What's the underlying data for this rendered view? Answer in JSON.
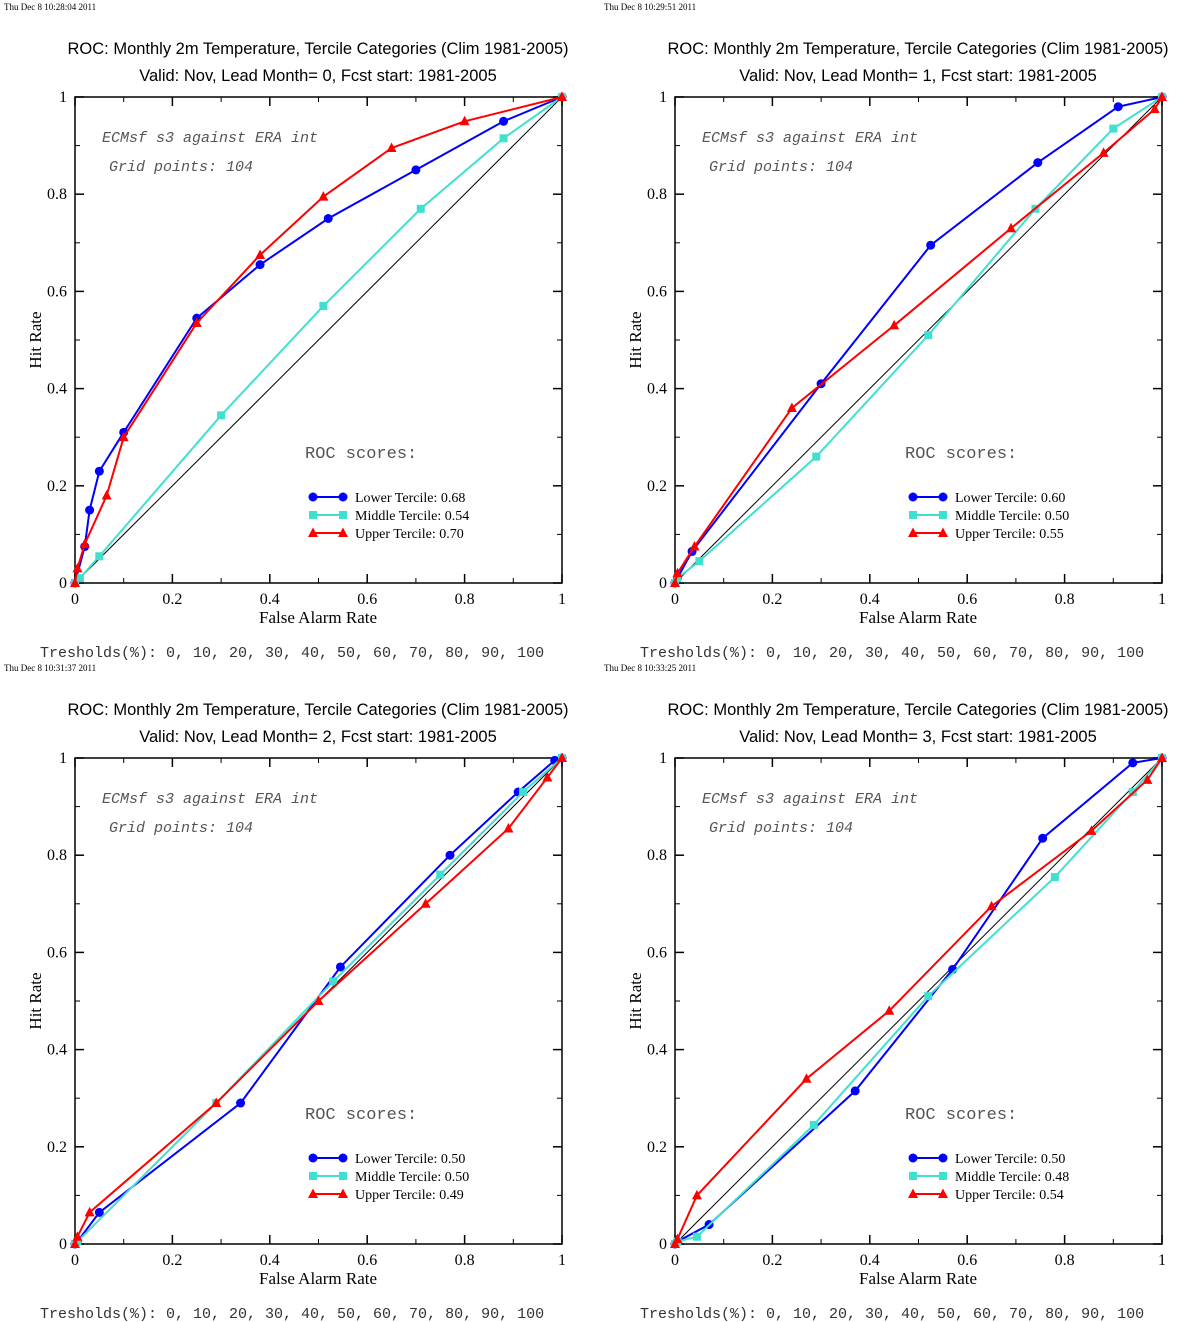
{
  "chart_data": [
    {
      "type": "line",
      "timestamp": "Thu Dec  8 10:28:04 2011",
      "title": "ROC: Monthly 2m Temperature, Tercile Categories (Clim 1981-2005)",
      "subtitle": "Valid: Nov, Lead Month= 0, Fcst start: 1981-2005",
      "xlabel": "False Alarm Rate",
      "ylabel": "Hit Rate",
      "xlim": [
        0,
        1
      ],
      "ylim": [
        0,
        1
      ],
      "x_ticks": [
        "0",
        "0.2",
        "0.4",
        "0.6",
        "0.8",
        "1"
      ],
      "y_ticks": [
        "0",
        "0.2",
        "0.4",
        "0.6",
        "0.8",
        "1"
      ],
      "annotation_1": "ECMsf s3 against ERA int",
      "annotation_2": "Grid points:  104",
      "scores_header": "ROC scores:",
      "thresholds": "Tresholds(%): 0, 10, 20, 30, 40, 50, 60, 70, 80, 90, 100",
      "legend_position": "lower-right",
      "series": [
        {
          "name": "Lower Tercile: 0.68",
          "color": "#0000ff",
          "marker": "circle",
          "x": [
            0,
            0.02,
            0.03,
            0.05,
            0.1,
            0.25,
            0.38,
            0.52,
            0.7,
            0.88,
            1
          ],
          "y": [
            0,
            0.075,
            0.15,
            0.23,
            0.31,
            0.545,
            0.655,
            0.75,
            0.85,
            0.95,
            1
          ]
        },
        {
          "name": "Middle Tercile: 0.54",
          "color": "#40e0d0",
          "marker": "square",
          "x": [
            0,
            0.01,
            0.05,
            0.3,
            0.51,
            0.71,
            0.88,
            1
          ],
          "y": [
            0,
            0.01,
            0.055,
            0.345,
            0.57,
            0.77,
            0.915,
            1
          ]
        },
        {
          "name": "Upper Tercile: 0.70",
          "color": "#ff0000",
          "marker": "triangle",
          "x": [
            0,
            0.005,
            0.02,
            0.065,
            0.1,
            0.25,
            0.38,
            0.51,
            0.65,
            0.8,
            1
          ],
          "y": [
            0,
            0.03,
            0.08,
            0.18,
            0.3,
            0.535,
            0.675,
            0.795,
            0.895,
            0.95,
            1
          ]
        }
      ]
    },
    {
      "type": "line",
      "timestamp": "Thu Dec  8 10:29:51 2011",
      "title": "ROC: Monthly 2m Temperature, Tercile Categories (Clim 1981-2005)",
      "subtitle": "Valid: Nov, Lead Month= 1, Fcst start: 1981-2005",
      "xlabel": "False Alarm Rate",
      "ylabel": "Hit Rate",
      "xlim": [
        0,
        1
      ],
      "ylim": [
        0,
        1
      ],
      "x_ticks": [
        "0",
        "0.2",
        "0.4",
        "0.6",
        "0.8",
        "1"
      ],
      "y_ticks": [
        "0",
        "0.2",
        "0.4",
        "0.6",
        "0.8",
        "1"
      ],
      "annotation_1": "ECMsf s3 against ERA int",
      "annotation_2": "Grid points:  104",
      "scores_header": "ROC scores:",
      "thresholds": "Tresholds(%): 0, 10, 20, 30, 40, 50, 60, 70, 80, 90, 100",
      "legend_position": "lower-right",
      "series": [
        {
          "name": "Lower Tercile: 0.60",
          "color": "#0000ff",
          "marker": "circle",
          "x": [
            0,
            0.005,
            0.035,
            0.3,
            0.525,
            0.745,
            0.91,
            1
          ],
          "y": [
            0,
            0.01,
            0.065,
            0.41,
            0.695,
            0.865,
            0.98,
            1
          ]
        },
        {
          "name": "Middle Tercile: 0.50",
          "color": "#40e0d0",
          "marker": "square",
          "x": [
            0,
            0.005,
            0.05,
            0.29,
            0.52,
            0.74,
            0.9,
            1
          ],
          "y": [
            0,
            0.01,
            0.045,
            0.26,
            0.51,
            0.77,
            0.935,
            1
          ]
        },
        {
          "name": "Upper Tercile: 0.55",
          "color": "#ff0000",
          "marker": "triangle",
          "x": [
            0,
            0.005,
            0.04,
            0.24,
            0.45,
            0.69,
            0.88,
            0.985,
            1
          ],
          "y": [
            0,
            0.02,
            0.075,
            0.36,
            0.53,
            0.73,
            0.885,
            0.975,
            1
          ]
        }
      ]
    },
    {
      "type": "line",
      "timestamp": "Thu Dec  8 10:31:37 2011",
      "title": "ROC: Monthly 2m Temperature, Tercile Categories (Clim 1981-2005)",
      "subtitle": "Valid: Nov, Lead Month= 2, Fcst start: 1981-2005",
      "xlabel": "False Alarm Rate",
      "ylabel": "Hit Rate",
      "xlim": [
        0,
        1
      ],
      "ylim": [
        0,
        1
      ],
      "x_ticks": [
        "0",
        "0.2",
        "0.4",
        "0.6",
        "0.8",
        "1"
      ],
      "y_ticks": [
        "0",
        "0.2",
        "0.4",
        "0.6",
        "0.8",
        "1"
      ],
      "annotation_1": "ECMsf s3 against ERA int",
      "annotation_2": "Grid points:  104",
      "scores_header": "ROC scores:",
      "thresholds": "Tresholds(%): 0, 10, 20, 30, 40, 50, 60, 70, 80, 90, 100",
      "legend_position": "lower-right",
      "series": [
        {
          "name": "Lower Tercile: 0.50",
          "color": "#0000ff",
          "marker": "circle",
          "x": [
            0,
            0.005,
            0.05,
            0.34,
            0.545,
            0.77,
            0.91,
            0.985,
            1
          ],
          "y": [
            0,
            0.005,
            0.065,
            0.29,
            0.57,
            0.8,
            0.93,
            0.995,
            1
          ]
        },
        {
          "name": "Middle Tercile: 0.50",
          "color": "#40e0d0",
          "marker": "square",
          "x": [
            0,
            0.005,
            0.29,
            0.53,
            0.75,
            0.92,
            1
          ],
          "y": [
            0,
            0.005,
            0.29,
            0.54,
            0.76,
            0.93,
            1
          ]
        },
        {
          "name": "Upper Tercile: 0.49",
          "color": "#ff0000",
          "marker": "triangle",
          "x": [
            0,
            0.005,
            0.03,
            0.29,
            0.5,
            0.72,
            0.89,
            0.97,
            1
          ],
          "y": [
            0,
            0.015,
            0.065,
            0.29,
            0.5,
            0.7,
            0.855,
            0.96,
            1
          ]
        }
      ]
    },
    {
      "type": "line",
      "timestamp": "Thu Dec  8 10:33:25 2011",
      "title": "ROC: Monthly 2m Temperature, Tercile Categories (Clim 1981-2005)",
      "subtitle": "Valid: Nov, Lead Month= 3, Fcst start: 1981-2005",
      "xlabel": "False Alarm Rate",
      "ylabel": "Hit Rate",
      "xlim": [
        0,
        1
      ],
      "ylim": [
        0,
        1
      ],
      "x_ticks": [
        "0",
        "0.2",
        "0.4",
        "0.6",
        "0.8",
        "1"
      ],
      "y_ticks": [
        "0",
        "0.2",
        "0.4",
        "0.6",
        "0.8",
        "1"
      ],
      "annotation_1": "ECMsf s3 against ERA int",
      "annotation_2": "Grid points:  104",
      "scores_header": "ROC scores:",
      "thresholds": "Tresholds(%): 0, 10, 20, 30, 40, 50, 60, 70, 80, 90, 100",
      "legend_position": "lower-right",
      "series": [
        {
          "name": "Lower Tercile: 0.50",
          "color": "#0000ff",
          "marker": "circle",
          "x": [
            0,
            0.005,
            0.07,
            0.37,
            0.57,
            0.755,
            0.94,
            1
          ],
          "y": [
            0,
            0.005,
            0.04,
            0.315,
            0.565,
            0.835,
            0.99,
            1
          ]
        },
        {
          "name": "Middle Tercile: 0.48",
          "color": "#40e0d0",
          "marker": "square",
          "x": [
            0,
            0.005,
            0.045,
            0.285,
            0.52,
            0.78,
            0.94,
            1
          ],
          "y": [
            0,
            0.005,
            0.015,
            0.245,
            0.51,
            0.755,
            0.93,
            1
          ]
        },
        {
          "name": "Upper Tercile: 0.54",
          "color": "#ff0000",
          "marker": "triangle",
          "x": [
            0,
            0.005,
            0.045,
            0.27,
            0.44,
            0.65,
            0.855,
            0.97,
            1
          ],
          "y": [
            0,
            0.01,
            0.1,
            0.34,
            0.48,
            0.695,
            0.85,
            0.955,
            1
          ]
        }
      ]
    }
  ]
}
